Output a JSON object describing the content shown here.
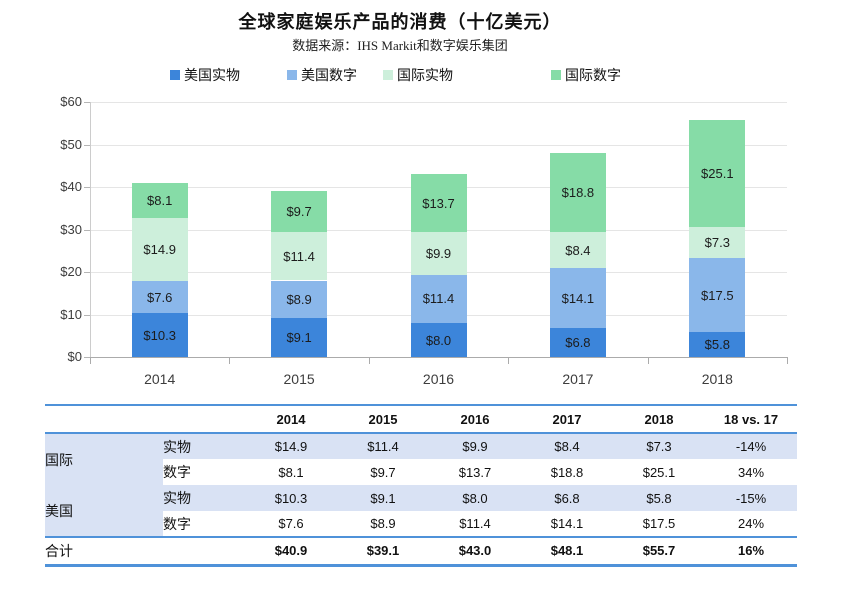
{
  "title": "全球家庭娱乐产品的消费（十亿美元）",
  "subtitle": "数据来源：IHS Markit和数字娱乐集团",
  "colors": {
    "us_physical": "#3c85da",
    "us_digital": "#8ab7ea",
    "intl_physical": "#cdefdb",
    "intl_digital": "#86dca7",
    "table_line": "#4f92d9",
    "table_row_bg": "#d9e2f4",
    "gridline": "#e5e5e5",
    "axis": "#ababab",
    "bar_label_text": "#1c1c1c"
  },
  "chart_data": {
    "type": "bar",
    "stacked": true,
    "title": "全球家庭娱乐产品的消费（十亿美元）",
    "source": "数据来源：IHS Markit和数字娱乐集团",
    "categories": [
      "2014",
      "2015",
      "2016",
      "2017",
      "2018"
    ],
    "series": [
      {
        "name": "美国实物",
        "color_key": "us_physical",
        "values": [
          10.3,
          9.1,
          8.0,
          6.8,
          5.8
        ]
      },
      {
        "name": "美国数字",
        "color_key": "us_digital",
        "values": [
          7.6,
          8.9,
          11.4,
          14.1,
          17.5
        ]
      },
      {
        "name": "国际实物",
        "color_key": "intl_physical",
        "values": [
          14.9,
          11.4,
          9.9,
          8.4,
          7.3
        ]
      },
      {
        "name": "国际数字",
        "color_key": "intl_digital",
        "values": [
          8.1,
          9.7,
          13.7,
          18.8,
          25.1
        ]
      }
    ],
    "totals": [
      40.9,
      39.1,
      43.0,
      48.1,
      55.7
    ],
    "ylim": [
      0,
      60
    ],
    "yticks": [
      0,
      10,
      20,
      30,
      40,
      50,
      60
    ],
    "ytick_prefix": "$",
    "bar_label_prefix": "$",
    "grid": true,
    "legend_position": "top"
  },
  "table": {
    "col_headers": [
      "2014",
      "2015",
      "2016",
      "2017",
      "2018",
      "18 vs. 17"
    ],
    "groups": [
      {
        "label": "国际",
        "rows": [
          {
            "label": "实物",
            "values": [
              "$14.9",
              "$11.4",
              "$9.9",
              "$8.4",
              "$7.3",
              "-14%"
            ]
          },
          {
            "label": "数字",
            "values": [
              "$8.1",
              "$9.7",
              "$13.7",
              "$18.8",
              "$25.1",
              "34%"
            ]
          }
        ]
      },
      {
        "label": "美国",
        "rows": [
          {
            "label": "实物",
            "values": [
              "$10.3",
              "$9.1",
              "$8.0",
              "$6.8",
              "$5.8",
              "-15%"
            ]
          },
          {
            "label": "数字",
            "values": [
              "$7.6",
              "$8.9",
              "$11.4",
              "$14.1",
              "$17.5",
              "24%"
            ]
          }
        ]
      }
    ],
    "total_row": {
      "label": "合计",
      "values": [
        "$40.9",
        "$39.1",
        "$43.0",
        "$48.1",
        "$55.7",
        "16%"
      ]
    }
  }
}
